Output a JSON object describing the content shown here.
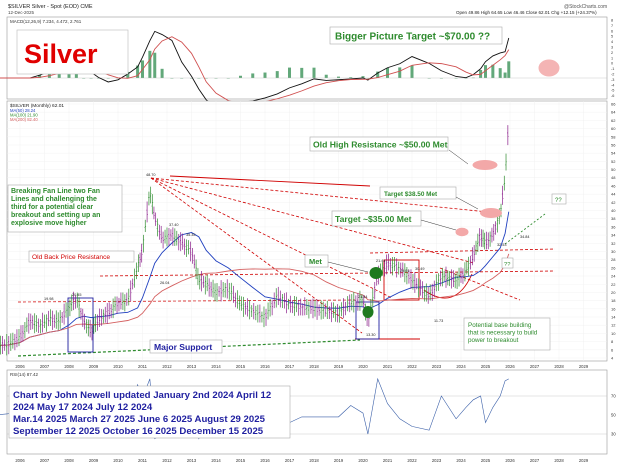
{
  "header": {
    "symbol_line": "$SILVER Silver - Spot (EOD) CME",
    "date_line": "12-Dec-2025",
    "ohlc_line": "Open 49.86  High 64.65  Low 46.46  Close 62.01  Chg +12.15 (+24.37%)",
    "watermark": "@StockCharts.com"
  },
  "macd_panel": {
    "legend": "MACD(12,26,9) 7.234, 4.472, 2.761",
    "y_ticks": [
      "8",
      "7",
      "6",
      "5",
      "4",
      "3",
      "2",
      "1",
      "0",
      "-1",
      "-2",
      "-3",
      "-4",
      "-5",
      "-6"
    ]
  },
  "price_panel": {
    "legend_title": "$SILVER (Monthly) 62.01",
    "legend_lines": [
      "MA(50) 28.24",
      "MA(100) 21.90",
      "MA(200) 82.40"
    ],
    "y_ticks": [
      "66",
      "64",
      "62",
      "60",
      "58",
      "56",
      "54",
      "52",
      "50",
      "48",
      "46",
      "44",
      "42",
      "40",
      "38",
      "36",
      "34",
      "32",
      "30",
      "28",
      "26",
      "24",
      "22",
      "20",
      "18",
      "16",
      "14",
      "12",
      "10",
      "8",
      "6",
      "4"
    ]
  },
  "rsi_panel": {
    "legend": "RSI(14) 87.42",
    "y_ticks": [
      "70",
      "50",
      "30"
    ]
  },
  "x_ticks": [
    "2006",
    "2007",
    "2008",
    "2009",
    "2010",
    "2011",
    "2012",
    "2013",
    "2014",
    "2015",
    "2016",
    "2017",
    "2018",
    "2019",
    "2020",
    "2021",
    "2022",
    "2023",
    "2024",
    "2025",
    "2026",
    "2027",
    "2028",
    "2029"
  ],
  "annotations": {
    "title": "Silver",
    "bigger_picture": "Bigger Picture Target ~$70.00 ??",
    "old_high": "Old High Resistance ~$50.00 Met",
    "target_38": "Target $38.50 Met",
    "target_35": "Target ~$35.00 Met",
    "met": "Met",
    "qq1": "??",
    "qq2": "??",
    "breaking_fan": "Breaking Fan Line two Fan Lines and challenging the third for a potential clear breakout and setting up an explosive move higher",
    "old_back": "Old Back Price Resistance",
    "major_support": "Major Support",
    "potential_base": "Potential base building that is necessary to build power to breakout",
    "updated_line1": "Chart by John Newell updated January 2nd 2024 April 12",
    "updated_line2": "2024 May 17 2024  July 12 2024",
    "updated_line3": "Mar.14 2025 March 27 2025 June 6 2025 August 29 2025",
    "updated_line4": "September 12 2025 October 16 2025 December 15 2025"
  },
  "peak_labels": [
    "48.70",
    "49.45",
    "37.40",
    "35.35",
    "26.04",
    "21.44",
    "34.84",
    "32.53",
    "29.91",
    "30.49",
    "21.44",
    "19.98",
    "13.30",
    "20.45",
    "11.73"
  ],
  "colors": {
    "up": "#2e8b2e",
    "down": "#8a1f8a",
    "ma50": "#1f3fbf",
    "ma200": "#d45f5f",
    "annot_green": "#2e8b2e",
    "annot_red": "#d10000",
    "annot_blue": "#1f1fa0",
    "target_circle": "#f3a8a8"
  },
  "chart_data": {
    "type": "line",
    "title": "$SILVER (Monthly) 62.01",
    "xlabel": "",
    "ylabel": "",
    "ylim": [
      4,
      66
    ],
    "x": [
      2005.0,
      2005.5,
      2006.0,
      2006.4,
      2006.8,
      2007.2,
      2007.6,
      2008.0,
      2008.3,
      2008.6,
      2008.9,
      2009.2,
      2009.6,
      2010.0,
      2010.4,
      2010.8,
      2011.0,
      2011.3,
      2011.5,
      2011.8,
      2012.2,
      2012.6,
      2013.0,
      2013.3,
      2013.6,
      2014.0,
      2014.5,
      2015.0,
      2015.5,
      2016.0,
      2016.5,
      2017.0,
      2017.5,
      2018.0,
      2018.5,
      2019.0,
      2019.5,
      2020.0,
      2020.2,
      2020.6,
      2021.0,
      2021.5,
      2022.0,
      2022.7,
      2023.2,
      2023.8,
      2024.2,
      2024.5,
      2024.8,
      2025.0,
      2025.3,
      2025.6,
      2025.8,
      2025.95
    ],
    "series": [
      {
        "values": [
          7.0,
          7.3,
          9.0,
          13.0,
          12.0,
          13.5,
          13.0,
          16.5,
          18.5,
          13.0,
          10.5,
          13.5,
          15.0,
          17.5,
          18.0,
          26.0,
          30.5,
          45.0,
          38.0,
          33.0,
          34.0,
          32.0,
          30.0,
          23.0,
          22.0,
          20.0,
          21.0,
          17.0,
          15.5,
          14.0,
          19.0,
          17.0,
          16.5,
          16.0,
          15.5,
          15.0,
          17.5,
          18.0,
          13.0,
          24.0,
          27.0,
          26.0,
          23.0,
          19.0,
          24.0,
          23.0,
          25.0,
          29.0,
          34.0,
          32.0,
          34.0,
          39.0,
          48.0,
          62.0
        ]
      }
    ]
  }
}
